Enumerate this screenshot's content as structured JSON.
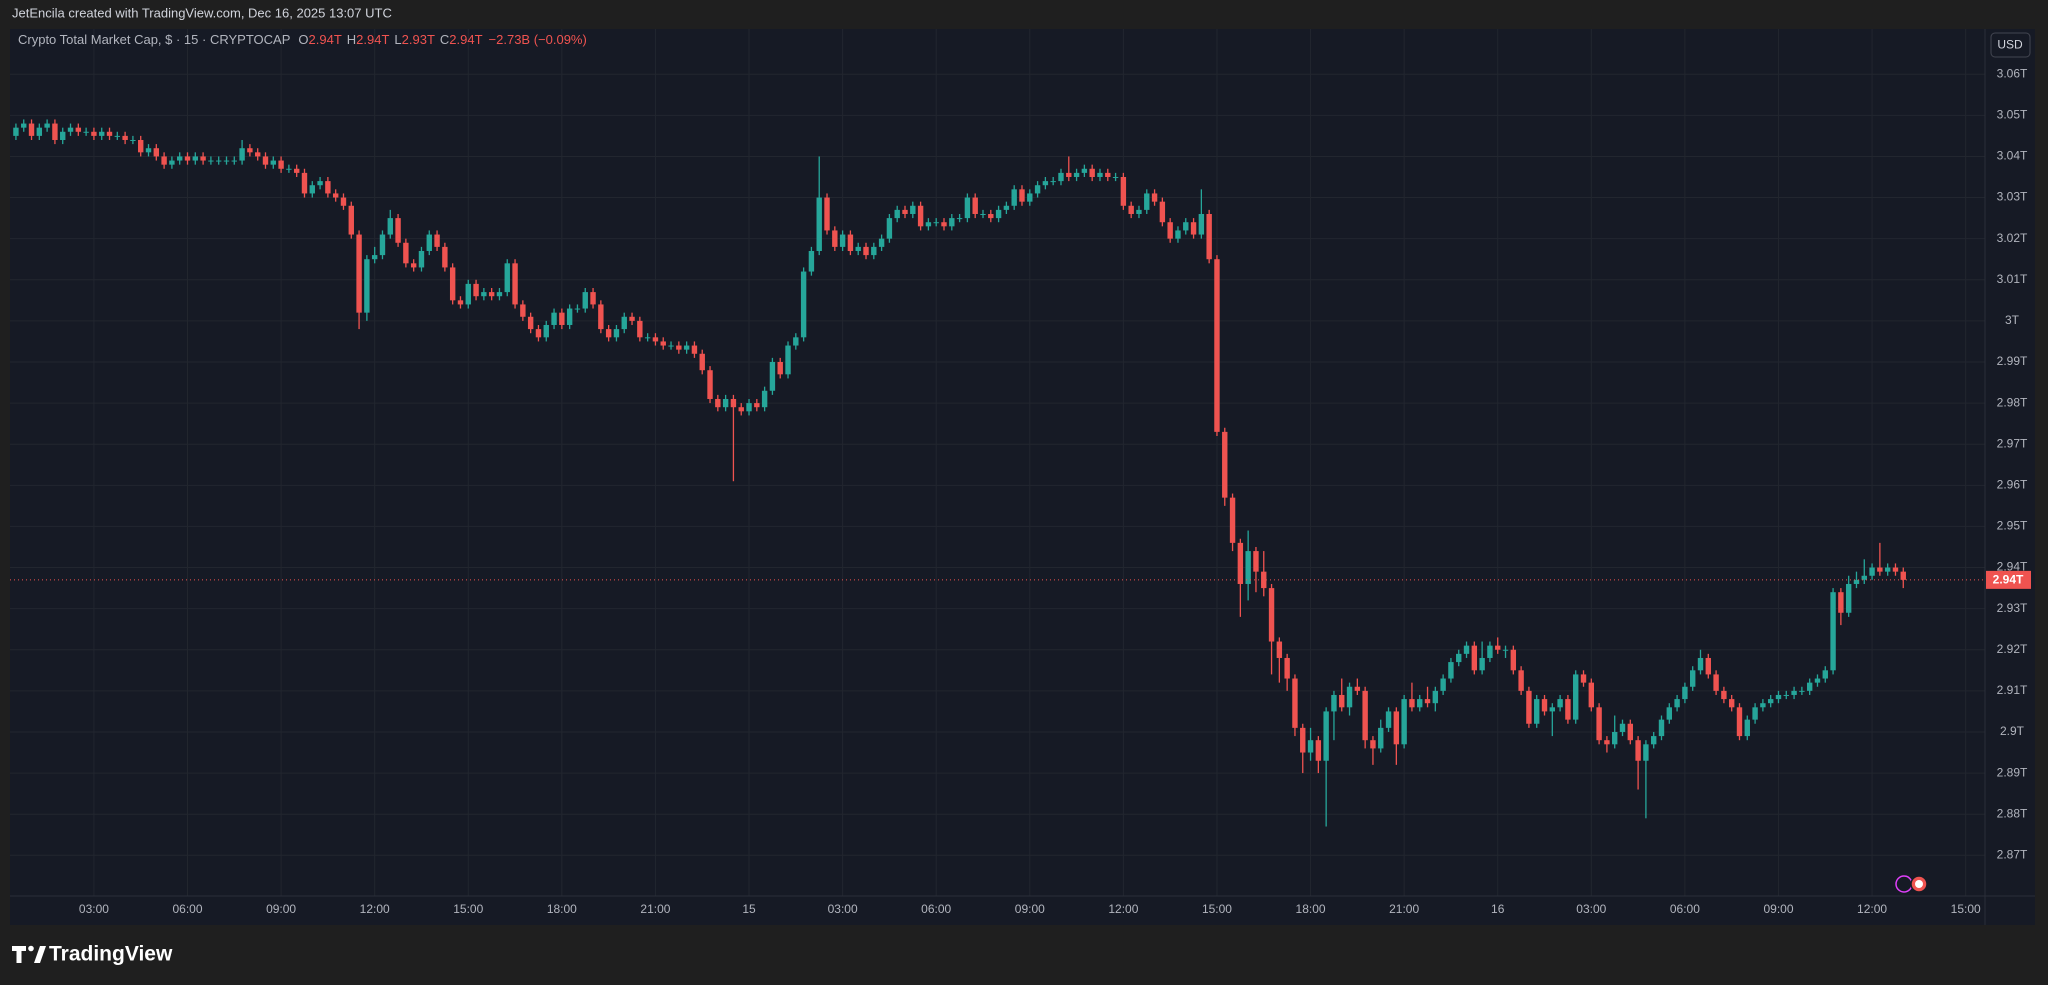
{
  "attribution": "JetEncila created with TradingView.com, Dec 16, 2025 13:07 UTC",
  "brand": "TradingView",
  "chart_data": {
    "type": "candlestick",
    "title": "Crypto Total Market Cap, $ · 15 · CRYPTOCAP",
    "ohlc_legend": [
      {
        "key": "O",
        "value": "2.94T"
      },
      {
        "key": "H",
        "value": "2.94T"
      },
      {
        "key": "L",
        "value": "2.93T"
      },
      {
        "key": "C",
        "value": "2.94T"
      }
    ],
    "change": "−2.73B (−0.09%)",
    "currency": "USD",
    "colors": {
      "up": "#26a69a",
      "down": "#ef5350"
    },
    "grid": true,
    "price_line": {
      "value": 2.937,
      "label": "2.94T"
    },
    "xlim": [
      0.31,
      63.62
    ],
    "xticks": [
      {
        "value": 3,
        "label": "03:00"
      },
      {
        "value": 6,
        "label": "06:00"
      },
      {
        "value": 9,
        "label": "09:00"
      },
      {
        "value": 12,
        "label": "12:00"
      },
      {
        "value": 15,
        "label": "15:00"
      },
      {
        "value": 18,
        "label": "18:00"
      },
      {
        "value": 21,
        "label": "21:00"
      },
      {
        "value": 24,
        "label": "15"
      },
      {
        "value": 27,
        "label": "03:00"
      },
      {
        "value": 30,
        "label": "06:00"
      },
      {
        "value": 33,
        "label": "09:00"
      },
      {
        "value": 36,
        "label": "12:00"
      },
      {
        "value": 39,
        "label": "15:00"
      },
      {
        "value": 42,
        "label": "18:00"
      },
      {
        "value": 45,
        "label": "21:00"
      },
      {
        "value": 48,
        "label": "16"
      },
      {
        "value": 51,
        "label": "03:00"
      },
      {
        "value": 54,
        "label": "06:00"
      },
      {
        "value": 57,
        "label": "09:00"
      },
      {
        "value": 60,
        "label": "12:00"
      },
      {
        "value": 63,
        "label": "15:00"
      }
    ],
    "ylim": [
      2.8601,
      3.071
    ],
    "yticks": [
      {
        "value": 3.06,
        "label": "3.06T"
      },
      {
        "value": 3.05,
        "label": "3.05T"
      },
      {
        "value": 3.04,
        "label": "3.04T"
      },
      {
        "value": 3.03,
        "label": "3.03T"
      },
      {
        "value": 3.02,
        "label": "3.02T"
      },
      {
        "value": 3.01,
        "label": "3.01T"
      },
      {
        "value": 3.0,
        "label": "3T"
      },
      {
        "value": 2.99,
        "label": "2.99T"
      },
      {
        "value": 2.98,
        "label": "2.98T"
      },
      {
        "value": 2.97,
        "label": "2.97T"
      },
      {
        "value": 2.96,
        "label": "2.96T"
      },
      {
        "value": 2.95,
        "label": "2.95T"
      },
      {
        "value": 2.94,
        "label": "2.94T"
      },
      {
        "value": 2.93,
        "label": "2.93T"
      },
      {
        "value": 2.92,
        "label": "2.92T"
      },
      {
        "value": 2.91,
        "label": "2.91T"
      },
      {
        "value": 2.9,
        "label": "2.9T"
      },
      {
        "value": 2.89,
        "label": "2.89T"
      },
      {
        "value": 2.88,
        "label": "2.88T"
      },
      {
        "value": 2.87,
        "label": "2.87T"
      }
    ],
    "x": [
      0.5,
      0.75,
      1,
      1.25,
      1.5,
      1.75,
      2,
      2.25,
      2.5,
      2.75,
      3,
      3.25,
      3.5,
      3.75,
      4,
      4.25,
      4.5,
      4.75,
      5,
      5.25,
      5.5,
      5.75,
      6,
      6.25,
      6.5,
      6.75,
      7,
      7.25,
      7.5,
      7.75,
      8,
      8.25,
      8.5,
      8.75,
      9,
      9.25,
      9.5,
      9.75,
      10,
      10.25,
      10.5,
      10.75,
      11,
      11.25,
      11.5,
      11.75,
      12,
      12.25,
      12.5,
      12.75,
      13,
      13.25,
      13.5,
      13.75,
      14,
      14.25,
      14.5,
      14.75,
      15,
      15.25,
      15.5,
      15.75,
      16,
      16.25,
      16.5,
      16.75,
      17,
      17.25,
      17.5,
      17.75,
      18,
      18.25,
      18.5,
      18.75,
      19,
      19.25,
      19.5,
      19.75,
      20,
      20.25,
      20.5,
      20.75,
      21,
      21.25,
      21.5,
      21.75,
      22,
      22.25,
      22.5,
      22.75,
      23,
      23.25,
      23.5,
      23.75,
      24,
      24.25,
      24.5,
      24.75,
      25,
      25.25,
      25.5,
      25.75,
      26,
      26.25,
      26.5,
      26.75,
      27,
      27.25,
      27.5,
      27.75,
      28,
      28.25,
      28.5,
      28.75,
      29,
      29.25,
      29.5,
      29.75,
      30,
      30.25,
      30.5,
      30.75,
      31,
      31.25,
      31.5,
      31.75,
      32,
      32.25,
      32.5,
      32.75,
      33,
      33.25,
      33.5,
      33.75,
      34,
      34.25,
      34.5,
      34.75,
      35,
      35.25,
      35.5,
      35.75,
      36,
      36.25,
      36.5,
      36.75,
      37,
      37.25,
      37.5,
      37.75,
      38,
      38.25,
      38.5,
      38.75,
      39,
      39.25,
      39.5,
      39.75,
      40,
      40.25,
      40.5,
      40.75,
      41,
      41.25,
      41.5,
      41.75,
      42,
      42.25,
      42.5,
      42.75,
      43,
      43.25,
      43.5,
      43.75,
      44,
      44.25,
      44.5,
      44.75,
      45,
      45.25,
      45.5,
      45.75,
      46,
      46.25,
      46.5,
      46.75,
      47,
      47.25,
      47.5,
      47.75,
      48,
      48.25,
      48.5,
      48.75,
      49,
      49.25,
      49.5,
      49.75,
      50,
      50.25,
      50.5,
      50.75,
      51,
      51.25,
      51.5,
      51.75,
      52,
      52.25,
      52.5,
      52.75,
      53,
      53.25,
      53.5,
      53.75,
      54,
      54.25,
      54.5,
      54.75,
      55,
      55.25,
      55.5,
      55.75,
      56,
      56.25,
      56.5,
      56.75,
      57,
      57.25,
      57.5,
      57.75,
      58,
      58.25,
      58.5,
      58.75,
      59,
      59.25,
      59.5,
      59.75,
      60,
      60.25,
      60.5,
      60.75,
      61
    ],
    "open": [
      3.045,
      3.047,
      3.048,
      3.045,
      3.047,
      3.048,
      3.044,
      3.046,
      3.047,
      3.046,
      3.046,
      3.045,
      3.046,
      3.045,
      3.045,
      3.044,
      3.044,
      3.041,
      3.042,
      3.04,
      3.038,
      3.039,
      3.04,
      3.039,
      3.04,
      3.039,
      3.039,
      3.039,
      3.039,
      3.039,
      3.042,
      3.041,
      3.04,
      3.038,
      3.039,
      3.037,
      3.037,
      3.036,
      3.031,
      3.033,
      3.034,
      3.031,
      3.03,
      3.028,
      3.021,
      3.002,
      3.015,
      3.016,
      3.021,
      3.025,
      3.019,
      3.014,
      3.013,
      3.017,
      3.021,
      3.018,
      3.013,
      3.005,
      3.004,
      3.009,
      3.006,
      3.007,
      3.006,
      3.007,
      3.014,
      3.004,
      3.001,
      2.998,
      2.996,
      2.999,
      3.002,
      2.999,
      3.003,
      3.003,
      3.007,
      3.004,
      2.998,
      2.996,
      2.998,
      3.001,
      3.0,
      2.996,
      2.996,
      2.995,
      2.994,
      2.994,
      2.993,
      2.994,
      2.992,
      2.988,
      2.981,
      2.979,
      2.981,
      2.979,
      2.978,
      2.98,
      2.979,
      2.983,
      2.99,
      2.987,
      2.994,
      2.996,
      3.012,
      3.017,
      3.03,
      3.022,
      3.018,
      3.021,
      3.017,
      3.018,
      3.016,
      3.018,
      3.02,
      3.025,
      3.027,
      3.026,
      3.028,
      3.023,
      3.024,
      3.024,
      3.023,
      3.025,
      3.025,
      3.03,
      3.026,
      3.026,
      3.025,
      3.027,
      3.028,
      3.032,
      3.029,
      3.031,
      3.033,
      3.034,
      3.034,
      3.036,
      3.035,
      3.036,
      3.037,
      3.035,
      3.036,
      3.035,
      3.035,
      3.028,
      3.026,
      3.027,
      3.031,
      3.029,
      3.024,
      3.02,
      3.022,
      3.024,
      3.021,
      3.026,
      3.015,
      2.973,
      2.957,
      2.946,
      2.936,
      2.944,
      2.939,
      2.935,
      2.922,
      2.918,
      2.913,
      2.901,
      2.895,
      2.898,
      2.893,
      2.905,
      2.909,
      2.906,
      2.911,
      2.91,
      2.898,
      2.896,
      2.901,
      2.905,
      2.897,
      2.908,
      2.906,
      2.908,
      2.907,
      2.91,
      2.913,
      2.917,
      2.919,
      2.921,
      2.915,
      2.918,
      2.921,
      2.92,
      2.92,
      2.915,
      2.91,
      2.902,
      2.908,
      2.905,
      2.906,
      2.908,
      2.903,
      2.914,
      2.912,
      2.906,
      2.898,
      2.897,
      2.9,
      2.902,
      2.898,
      2.893,
      2.897,
      2.899,
      2.903,
      2.906,
      2.908,
      2.911,
      2.915,
      2.918,
      2.914,
      2.91,
      2.908,
      2.906,
      2.899,
      2.903,
      2.906,
      2.907,
      2.908,
      2.909,
      2.909,
      2.91,
      2.91,
      2.912,
      2.913,
      2.915,
      2.934,
      2.929,
      2.936,
      2.937,
      2.938,
      2.94,
      2.939,
      2.94,
      2.939
    ],
    "high": [
      3.048,
      3.049,
      3.049,
      3.048,
      3.049,
      3.049,
      3.047,
      3.048,
      3.048,
      3.047,
      3.047,
      3.047,
      3.047,
      3.046,
      3.046,
      3.045,
      3.045,
      3.043,
      3.043,
      3.041,
      3.04,
      3.041,
      3.041,
      3.041,
      3.041,
      3.04,
      3.04,
      3.04,
      3.04,
      3.044,
      3.043,
      3.042,
      3.041,
      3.04,
      3.04,
      3.038,
      3.038,
      3.037,
      3.034,
      3.035,
      3.035,
      3.032,
      3.031,
      3.029,
      3.022,
      3.016,
      3.018,
      3.022,
      3.027,
      3.026,
      3.02,
      3.015,
      3.018,
      3.022,
      3.022,
      3.019,
      3.014,
      3.006,
      3.01,
      3.01,
      3.008,
      3.008,
      3.008,
      3.015,
      3.015,
      3.005,
      3.002,
      2.999,
      3.0,
      3.003,
      3.003,
      3.004,
      3.004,
      3.008,
      3.008,
      3.005,
      2.999,
      2.999,
      3.002,
      3.002,
      3.001,
      2.997,
      2.997,
      2.996,
      2.995,
      2.995,
      2.995,
      2.995,
      2.993,
      2.989,
      2.982,
      2.982,
      2.982,
      2.98,
      2.981,
      2.981,
      2.984,
      2.991,
      2.991,
      2.995,
      2.997,
      3.013,
      3.018,
      3.04,
      3.031,
      3.023,
      3.022,
      3.022,
      3.019,
      3.019,
      3.019,
      3.021,
      3.026,
      3.028,
      3.028,
      3.029,
      3.029,
      3.025,
      3.025,
      3.025,
      3.026,
      3.026,
      3.031,
      3.031,
      3.027,
      3.027,
      3.028,
      3.029,
      3.033,
      3.033,
      3.032,
      3.034,
      3.035,
      3.035,
      3.037,
      3.04,
      3.037,
      3.038,
      3.038,
      3.037,
      3.037,
      3.036,
      3.036,
      3.029,
      3.028,
      3.032,
      3.032,
      3.03,
      3.025,
      3.023,
      3.025,
      3.025,
      3.032,
      3.027,
      3.016,
      2.974,
      2.958,
      2.947,
      2.949,
      2.945,
      2.944,
      2.936,
      2.923,
      2.919,
      2.914,
      2.902,
      2.901,
      2.899,
      2.906,
      2.91,
      2.913,
      2.912,
      2.913,
      2.911,
      2.899,
      2.903,
      2.906,
      2.906,
      2.909,
      2.912,
      2.909,
      2.911,
      2.911,
      2.914,
      2.918,
      2.92,
      2.922,
      2.922,
      2.922,
      2.922,
      2.923,
      2.921,
      2.921,
      2.916,
      2.911,
      2.909,
      2.909,
      2.907,
      2.909,
      2.909,
      2.915,
      2.915,
      2.913,
      2.907,
      2.899,
      2.904,
      2.903,
      2.903,
      2.899,
      2.898,
      2.9,
      2.904,
      2.907,
      2.909,
      2.912,
      2.916,
      2.92,
      2.919,
      2.915,
      2.911,
      2.909,
      2.907,
      2.904,
      2.907,
      2.908,
      2.909,
      2.91,
      2.91,
      2.911,
      2.911,
      2.913,
      2.914,
      2.916,
      2.935,
      2.935,
      2.938,
      2.939,
      2.942,
      2.941,
      2.946,
      2.941,
      2.941,
      2.94
    ],
    "low": [
      3.044,
      3.046,
      3.044,
      3.044,
      3.046,
      3.043,
      3.043,
      3.045,
      3.045,
      3.045,
      3.044,
      3.044,
      3.044,
      3.044,
      3.043,
      3.043,
      3.04,
      3.04,
      3.039,
      3.037,
      3.037,
      3.038,
      3.038,
      3.038,
      3.038,
      3.038,
      3.038,
      3.038,
      3.038,
      3.038,
      3.04,
      3.039,
      3.037,
      3.037,
      3.036,
      3.036,
      3.035,
      3.03,
      3.03,
      3.032,
      3.03,
      3.029,
      3.027,
      3.02,
      2.998,
      3.0,
      3.014,
      3.015,
      3.02,
      3.018,
      3.013,
      3.012,
      3.012,
      3.016,
      3.017,
      3.012,
      3.004,
      3.003,
      3.003,
      3.005,
      3.005,
      3.005,
      3.005,
      3.006,
      3.003,
      3.0,
      2.997,
      2.995,
      2.995,
      2.998,
      2.998,
      2.998,
      3.002,
      3.002,
      3.003,
      2.997,
      2.995,
      2.995,
      2.997,
      2.999,
      2.995,
      2.995,
      2.994,
      2.993,
      2.993,
      2.992,
      2.992,
      2.991,
      2.987,
      2.98,
      2.978,
      2.978,
      2.961,
      2.977,
      2.977,
      2.978,
      2.978,
      2.982,
      2.986,
      2.986,
      2.993,
      2.995,
      3.011,
      3.016,
      3.021,
      3.017,
      3.017,
      3.016,
      3.016,
      3.015,
      3.015,
      3.017,
      3.019,
      3.024,
      3.025,
      3.025,
      3.022,
      3.022,
      3.023,
      3.022,
      3.022,
      3.024,
      3.024,
      3.025,
      3.025,
      3.024,
      3.024,
      3.026,
      3.027,
      3.028,
      3.028,
      3.03,
      3.032,
      3.033,
      3.033,
      3.034,
      3.034,
      3.035,
      3.034,
      3.034,
      3.034,
      3.034,
      3.027,
      3.025,
      3.025,
      3.026,
      3.028,
      3.023,
      3.019,
      3.019,
      3.021,
      3.02,
      3.02,
      3.014,
      2.972,
      2.955,
      2.944,
      2.928,
      2.932,
      2.934,
      2.933,
      2.914,
      2.912,
      2.91,
      2.899,
      2.89,
      2.893,
      2.89,
      2.877,
      2.898,
      2.905,
      2.904,
      2.909,
      2.896,
      2.892,
      2.895,
      2.9,
      2.892,
      2.896,
      2.905,
      2.905,
      2.906,
      2.905,
      2.909,
      2.912,
      2.916,
      2.918,
      2.914,
      2.914,
      2.917,
      2.919,
      2.918,
      2.914,
      2.909,
      2.901,
      2.901,
      2.904,
      2.899,
      2.905,
      2.902,
      2.902,
      2.911,
      2.905,
      2.897,
      2.895,
      2.896,
      2.899,
      2.897,
      2.886,
      2.879,
      2.896,
      2.898,
      2.902,
      2.905,
      2.907,
      2.91,
      2.914,
      2.913,
      2.909,
      2.907,
      2.905,
      2.898,
      2.898,
      2.902,
      2.905,
      2.906,
      2.907,
      2.908,
      2.908,
      2.909,
      2.909,
      2.911,
      2.912,
      2.914,
      2.926,
      2.928,
      2.935,
      2.936,
      2.937,
      2.938,
      2.938,
      2.938,
      2.935
    ],
    "close": [
      3.047,
      3.048,
      3.045,
      3.047,
      3.048,
      3.044,
      3.046,
      3.047,
      3.046,
      3.046,
      3.045,
      3.046,
      3.045,
      3.045,
      3.044,
      3.044,
      3.041,
      3.042,
      3.04,
      3.038,
      3.039,
      3.04,
      3.039,
      3.04,
      3.039,
      3.039,
      3.039,
      3.039,
      3.039,
      3.042,
      3.041,
      3.04,
      3.038,
      3.039,
      3.037,
      3.037,
      3.036,
      3.031,
      3.033,
      3.034,
      3.031,
      3.03,
      3.028,
      3.021,
      3.002,
      3.015,
      3.016,
      3.021,
      3.025,
      3.019,
      3.014,
      3.013,
      3.017,
      3.021,
      3.018,
      3.013,
      3.005,
      3.004,
      3.009,
      3.006,
      3.007,
      3.006,
      3.007,
      3.014,
      3.004,
      3.001,
      2.998,
      2.996,
      2.999,
      3.002,
      2.999,
      3.003,
      3.003,
      3.007,
      3.004,
      2.998,
      2.996,
      2.998,
      3.001,
      3.0,
      2.996,
      2.996,
      2.995,
      2.994,
      2.994,
      2.993,
      2.994,
      2.992,
      2.988,
      2.981,
      2.979,
      2.981,
      2.979,
      2.978,
      2.98,
      2.979,
      2.983,
      2.99,
      2.987,
      2.994,
      2.996,
      3.012,
      3.017,
      3.03,
      3.022,
      3.018,
      3.021,
      3.017,
      3.018,
      3.016,
      3.018,
      3.02,
      3.025,
      3.027,
      3.026,
      3.028,
      3.023,
      3.024,
      3.024,
      3.023,
      3.025,
      3.025,
      3.03,
      3.026,
      3.026,
      3.025,
      3.027,
      3.028,
      3.032,
      3.029,
      3.031,
      3.033,
      3.034,
      3.034,
      3.036,
      3.035,
      3.036,
      3.037,
      3.035,
      3.036,
      3.035,
      3.035,
      3.028,
      3.026,
      3.027,
      3.031,
      3.029,
      3.024,
      3.02,
      3.022,
      3.024,
      3.021,
      3.026,
      3.015,
      2.973,
      2.957,
      2.946,
      2.936,
      2.944,
      2.939,
      2.935,
      2.922,
      2.918,
      2.913,
      2.901,
      2.895,
      2.898,
      2.893,
      2.905,
      2.909,
      2.906,
      2.911,
      2.91,
      2.898,
      2.896,
      2.901,
      2.905,
      2.897,
      2.908,
      2.906,
      2.908,
      2.907,
      2.91,
      2.913,
      2.917,
      2.919,
      2.921,
      2.915,
      2.918,
      2.921,
      2.92,
      2.92,
      2.915,
      2.91,
      2.902,
      2.908,
      2.905,
      2.906,
      2.908,
      2.903,
      2.914,
      2.912,
      2.906,
      2.898,
      2.897,
      2.9,
      2.902,
      2.898,
      2.893,
      2.897,
      2.899,
      2.903,
      2.906,
      2.908,
      2.911,
      2.915,
      2.918,
      2.914,
      2.91,
      2.908,
      2.906,
      2.899,
      2.903,
      2.906,
      2.907,
      2.908,
      2.909,
      2.909,
      2.91,
      2.91,
      2.912,
      2.913,
      2.915,
      2.934,
      2.929,
      2.936,
      2.937,
      2.938,
      2.94,
      2.939,
      2.94,
      2.939,
      2.937
    ]
  }
}
